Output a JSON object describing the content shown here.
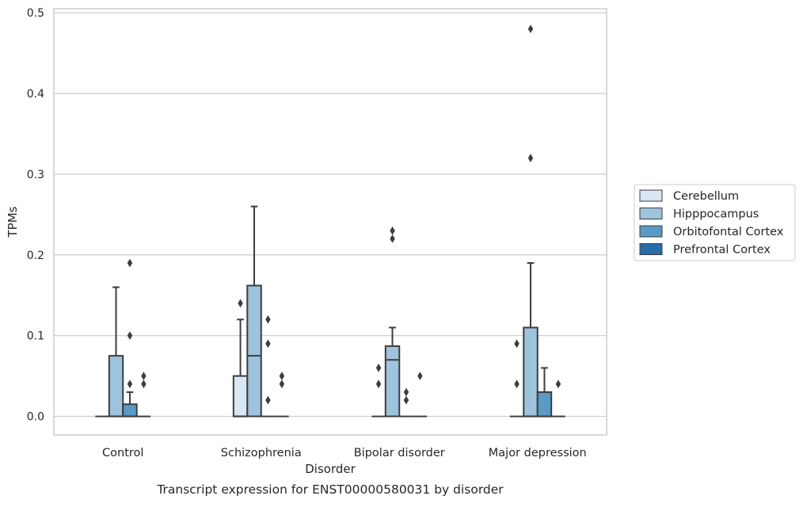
{
  "chart_data": {
    "type": "boxplot",
    "caption": "Transcript expression for ENST00000580031 by disorder",
    "xlabel": "Disorder",
    "ylabel": "TPMs",
    "ylim": [
      -0.023,
      0.505
    ],
    "yticks": [
      0.0,
      0.1,
      0.2,
      0.3,
      0.4,
      0.5
    ],
    "ytick_labels": [
      "0.0",
      "0.1",
      "0.2",
      "0.3",
      "0.4",
      "0.5"
    ],
    "grid": "horizontal",
    "legend_position": "right",
    "categories": [
      "Control",
      "Schizophrenia",
      "Bipolar disorder",
      "Major depression"
    ],
    "series": [
      {
        "name": "Cerebellum",
        "color": "#dbe6f4",
        "boxes": [
          {
            "q1": 0,
            "median": 0,
            "q3": 0,
            "whislo": 0,
            "whishi": 0,
            "fliers": []
          },
          {
            "q1": 0,
            "median": 0,
            "q3": 0.05,
            "whislo": 0,
            "whishi": 0.12,
            "fliers": [
              0.14
            ]
          },
          {
            "q1": 0,
            "median": 0,
            "q3": 0,
            "whislo": 0,
            "whishi": 0,
            "fliers": [
              0.04,
              0.06
            ]
          },
          {
            "q1": 0,
            "median": 0,
            "q3": 0,
            "whislo": 0,
            "whishi": 0,
            "fliers": [
              0.04,
              0.09
            ]
          }
        ]
      },
      {
        "name": "Hipppocampus",
        "color": "#9ec4dd",
        "boxes": [
          {
            "q1": 0,
            "median": 0,
            "q3": 0.075,
            "whislo": 0,
            "whishi": 0.16,
            "fliers": []
          },
          {
            "q1": 0,
            "median": 0.075,
            "q3": 0.162,
            "whislo": 0,
            "whishi": 0.26,
            "fliers": []
          },
          {
            "q1": 0,
            "median": 0.07,
            "q3": 0.087,
            "whislo": 0,
            "whishi": 0.11,
            "fliers": [
              0.22,
              0.23
            ]
          },
          {
            "q1": 0,
            "median": 0,
            "q3": 0.11,
            "whislo": 0,
            "whishi": 0.19,
            "fliers": [
              0.32,
              0.48
            ]
          }
        ]
      },
      {
        "name": "Orbitofontal Cortex",
        "color": "#5a9ac6",
        "boxes": [
          {
            "q1": 0,
            "median": 0,
            "q3": 0.015,
            "whislo": 0,
            "whishi": 0.03,
            "fliers": [
              0.04,
              0.1,
              0.19
            ]
          },
          {
            "q1": 0,
            "median": 0,
            "q3": 0,
            "whislo": 0,
            "whishi": 0,
            "fliers": [
              0.02,
              0.09,
              0.12
            ]
          },
          {
            "q1": 0,
            "median": 0,
            "q3": 0,
            "whislo": 0,
            "whishi": 0,
            "fliers": [
              0.02,
              0.03
            ]
          },
          {
            "q1": 0,
            "median": 0,
            "q3": 0.03,
            "whislo": 0,
            "whishi": 0.06,
            "fliers": []
          }
        ]
      },
      {
        "name": "Prefrontal Cortex",
        "color": "#2b6ca8",
        "boxes": [
          {
            "q1": 0,
            "median": 0,
            "q3": 0,
            "whislo": 0,
            "whishi": 0,
            "fliers": [
              0.04,
              0.05
            ]
          },
          {
            "q1": 0,
            "median": 0,
            "q3": 0,
            "whislo": 0,
            "whishi": 0,
            "fliers": [
              0.04,
              0.05
            ]
          },
          {
            "q1": 0,
            "median": 0,
            "q3": 0,
            "whislo": 0,
            "whishi": 0,
            "fliers": [
              0.05
            ]
          },
          {
            "q1": 0,
            "median": 0,
            "q3": 0,
            "whislo": 0,
            "whishi": 0,
            "fliers": [
              0.04
            ]
          }
        ]
      }
    ]
  }
}
